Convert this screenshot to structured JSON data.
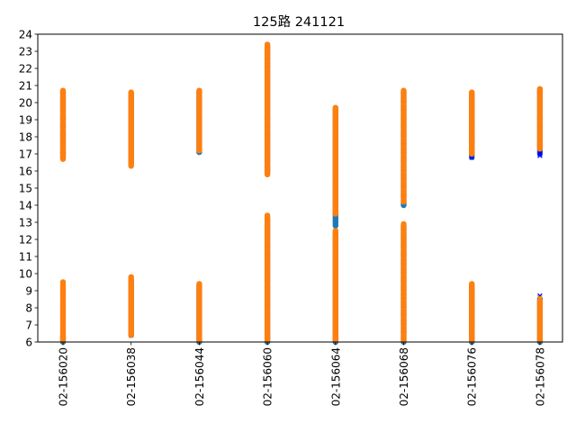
{
  "chart_data": {
    "type": "scatter",
    "title": "125路  241121",
    "xlabel": "",
    "ylabel": "",
    "categories": [
      "02-156020",
      "02-156038",
      "02-156044",
      "02-156060",
      "02-156064",
      "02-156068",
      "02-156076",
      "02-156078"
    ],
    "ylim": [
      6,
      24
    ],
    "yticks": [
      6,
      7,
      8,
      9,
      10,
      11,
      12,
      13,
      14,
      15,
      16,
      17,
      18,
      19,
      20,
      21,
      22,
      23,
      24
    ],
    "grid": false,
    "legend": "none",
    "series": [
      {
        "marker": "circle",
        "color": "#1f77b4",
        "ranges": [
          [
            [
              6.0,
              6.3
            ],
            [
              16.8,
              20.6
            ]
          ],
          [
            [
              6.4,
              9.6
            ],
            [
              16.4,
              20.5
            ]
          ],
          [
            [
              6.0,
              9.3
            ],
            [
              17.1,
              20.6
            ]
          ],
          [
            [
              6.0,
              13.2
            ],
            [
              15.9,
              23.3
            ]
          ],
          [
            [
              6.0,
              12.4
            ],
            [
              12.8,
              19.6
            ]
          ],
          [
            [
              6.0,
              12.8
            ],
            [
              14.0,
              20.6
            ]
          ],
          [
            [
              6.0,
              9.3
            ],
            [
              16.8,
              20.5
            ]
          ],
          [
            [
              6.0,
              8.5
            ],
            [
              17.0,
              20.7
            ]
          ]
        ]
      },
      {
        "marker": "x",
        "color": "#0000ff",
        "ranges": [
          [
            [
              6.1,
              9.0
            ]
          ],
          [
            [
              6.4,
              9.5
            ]
          ],
          [
            [
              6.2,
              9.2
            ]
          ],
          [
            [
              6.1,
              10.5
            ]
          ],
          [
            [
              6.1,
              9.0
            ]
          ],
          [
            [
              6.1,
              8.8
            ]
          ],
          [
            [
              6.3,
              9.0
            ],
            [
              16.8,
              17.1
            ]
          ],
          [
            [
              6.1,
              8.7
            ],
            [
              16.9,
              20.0
            ]
          ]
        ]
      },
      {
        "marker": "x",
        "color": "#ffa500",
        "ranges": [
          [
            [
              6.2,
              9.2
            ]
          ],
          [
            [
              6.5,
              9.4
            ]
          ],
          [
            [
              6.3,
              9.0
            ]
          ],
          [
            [
              6.2,
              9.0
            ]
          ],
          [
            [
              6.2,
              9.2
            ]
          ],
          [
            [
              6.2,
              9.1
            ]
          ],
          [
            [
              6.3,
              9.1
            ]
          ],
          [
            [
              6.2,
              8.6
            ]
          ]
        ]
      },
      {
        "marker": "circle",
        "color": "#ff7f0e",
        "ranges": [
          [
            [
              6.1,
              9.5
            ],
            [
              16.7,
              20.7
            ]
          ],
          [
            [
              6.4,
              9.8
            ],
            [
              16.3,
              20.6
            ]
          ],
          [
            [
              6.1,
              9.4
            ],
            [
              17.2,
              20.7
            ]
          ],
          [
            [
              6.1,
              13.4
            ],
            [
              15.8,
              23.4
            ]
          ],
          [
            [
              6.1,
              12.5
            ],
            [
              13.5,
              19.7
            ]
          ],
          [
            [
              6.1,
              12.9
            ],
            [
              14.2,
              20.7
            ]
          ],
          [
            [
              6.1,
              9.4
            ],
            [
              17.0,
              20.6
            ]
          ],
          [
            [
              6.1,
              8.4
            ],
            [
              17.3,
              20.8
            ]
          ]
        ]
      }
    ]
  }
}
